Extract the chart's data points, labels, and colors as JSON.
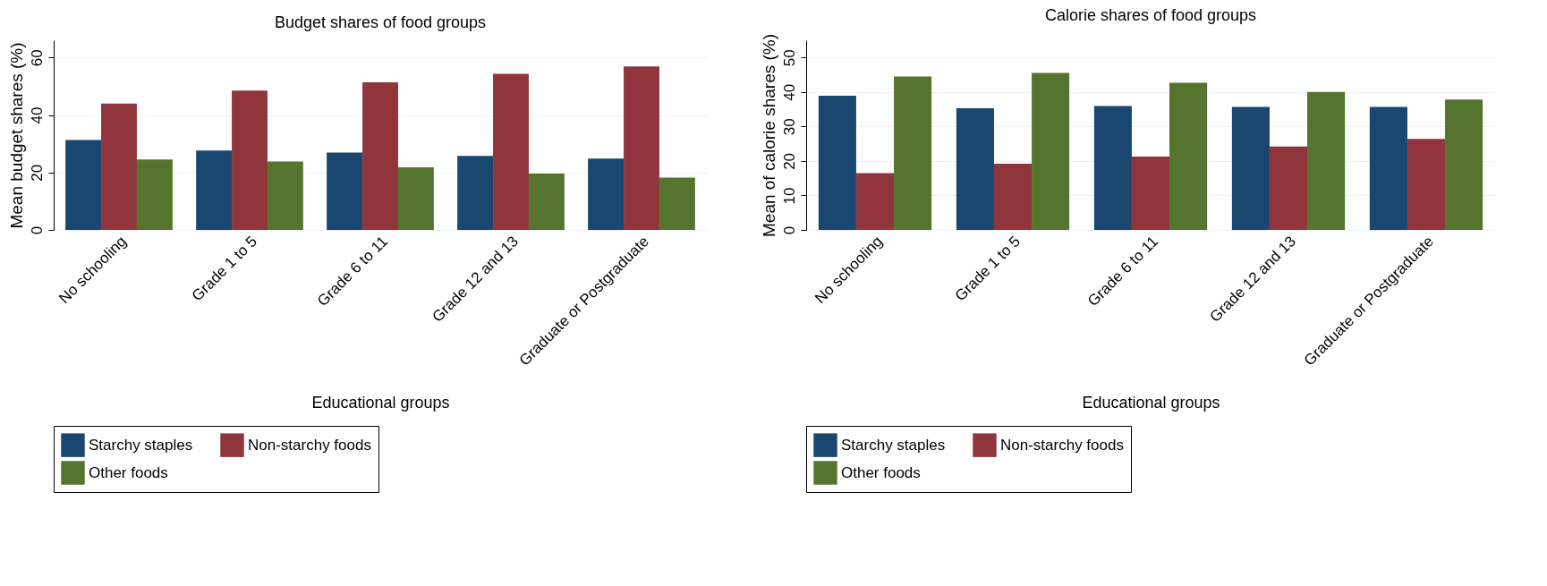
{
  "chart_data": [
    {
      "type": "bar",
      "title": "Budget shares of food groups",
      "xlabel": "Educational groups",
      "ylabel": "Mean budget shares (%)",
      "categories": [
        "No schooling",
        "Grade 1 to 5",
        "Grade 6 to 11",
        "Grade 12 and 13",
        "Graduate or Postgraduate"
      ],
      "series": [
        {
          "name": "Starchy staples",
          "color": "#1a476f",
          "values": [
            31.3,
            27.6,
            26.9,
            25.8,
            24.8
          ]
        },
        {
          "name": "Non-starchy foods",
          "color": "#90353b",
          "values": [
            44.0,
            48.5,
            51.4,
            54.3,
            56.9
          ]
        },
        {
          "name": "Other foods",
          "color": "#55752f",
          "values": [
            24.5,
            23.8,
            21.8,
            19.6,
            18.2
          ]
        }
      ],
      "ylim": [
        0,
        66
      ],
      "yticks": [
        0,
        20,
        40,
        60
      ],
      "grid": "y",
      "legend": "bottom"
    },
    {
      "type": "bar",
      "title": "Calorie shares of food groups",
      "xlabel": "Educational groups",
      "ylabel": "Mean of calorie shares (%)",
      "categories": [
        "No schooling",
        "Grade 1 to 5",
        "Grade 6 to 11",
        "Grade 12 and 13",
        "Graduate or Postgraduate"
      ],
      "series": [
        {
          "name": "Starchy staples",
          "color": "#1a476f",
          "values": [
            38.9,
            35.3,
            35.9,
            35.7,
            35.7
          ]
        },
        {
          "name": "Non-starchy foods",
          "color": "#90353b",
          "values": [
            16.5,
            19.2,
            21.3,
            24.2,
            26.4
          ]
        },
        {
          "name": "Other foods",
          "color": "#55752f",
          "values": [
            44.5,
            45.5,
            42.7,
            40.0,
            37.8
          ]
        }
      ],
      "ylim": [
        0,
        55
      ],
      "yticks": [
        0,
        10,
        20,
        30,
        40,
        50
      ],
      "grid": "y",
      "legend": "bottom"
    }
  ]
}
